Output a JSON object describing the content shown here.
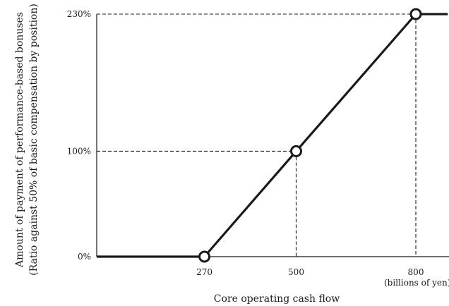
{
  "chart_data": {
    "type": "line",
    "title": "",
    "xlabel": "Core operating cash flow",
    "x_unit": "(billions of yen)",
    "ylabel_line1": "Amount of payment of performance-based bonuses",
    "ylabel_line2": "(Ratio against 50% of basic compensation by position)",
    "x_ticks": [
      {
        "value": 270,
        "label": "270"
      },
      {
        "value": 500,
        "label": "500"
      },
      {
        "value": 800,
        "label": "800"
      }
    ],
    "y_ticks": [
      {
        "value": 0,
        "label": "0%"
      },
      {
        "value": 100,
        "label": "100%"
      },
      {
        "value": 230,
        "label": "230%"
      }
    ],
    "xlim": [
      0,
      880
    ],
    "ylim": [
      0,
      230
    ],
    "series": [
      {
        "points": [
          [
            0,
            0
          ],
          [
            270,
            0
          ],
          [
            500,
            100
          ],
          [
            800,
            230
          ],
          [
            880,
            230
          ]
        ],
        "markers": [
          [
            270,
            0
          ],
          [
            500,
            100
          ],
          [
            800,
            230
          ]
        ]
      }
    ],
    "guides": [
      {
        "x": 500,
        "y": 100
      },
      {
        "x": 800,
        "y": 230
      }
    ]
  }
}
